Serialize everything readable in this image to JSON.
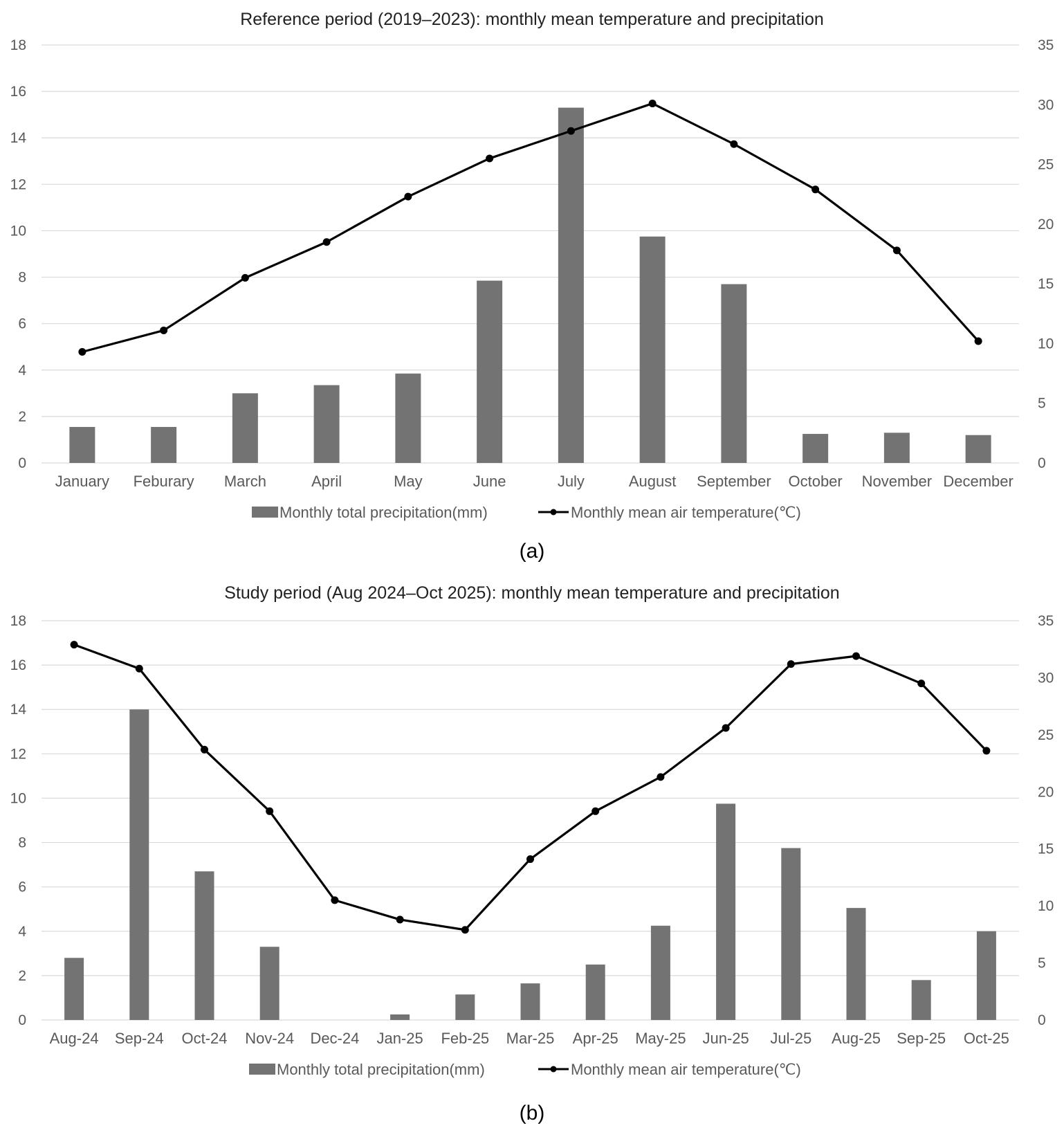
{
  "colors": {
    "bar": "#737373",
    "line": "#000000",
    "grid": "#d9d9d9",
    "tick_text": "#595959"
  },
  "legend": {
    "precip_label": "Monthly total precipitation(mm)",
    "temp_label": "Monthly mean air temperature(℃)"
  },
  "chart_data": [
    {
      "type": "bar",
      "title": "Reference period (2019–2023): monthly mean temperature and precipitation",
      "caption": "(a)",
      "categories": [
        "January",
        "Feburary",
        "March",
        "April",
        "May",
        "June",
        "July",
        "August",
        "September",
        "October",
        "November",
        "December"
      ],
      "y_left": {
        "ylim": [
          0,
          18
        ],
        "ticks": [
          "0",
          "2",
          "4",
          "6",
          "8",
          "10",
          "12",
          "14",
          "16",
          "18"
        ]
      },
      "y_right": {
        "ylim": [
          0,
          35
        ],
        "ticks": [
          "0",
          "5",
          "10",
          "15",
          "20",
          "25",
          "30",
          "35"
        ]
      },
      "series": [
        {
          "name": "Monthly total precipitation(mm)",
          "type": "bar",
          "axis": "left",
          "values": [
            1.55,
            1.55,
            3.0,
            3.35,
            3.85,
            7.85,
            15.3,
            9.75,
            7.7,
            1.25,
            1.3,
            1.2
          ]
        },
        {
          "name": "Monthly mean air temperature(℃)",
          "type": "line",
          "axis": "right",
          "values": [
            9.3,
            11.1,
            15.5,
            18.5,
            22.3,
            25.5,
            27.8,
            30.1,
            26.7,
            22.9,
            17.8,
            10.2
          ]
        }
      ],
      "grid": true,
      "legend_position": "bottom"
    },
    {
      "type": "bar",
      "title": "Study period (Aug 2024–Oct 2025): monthly mean temperature and precipitation",
      "caption": "(b)",
      "categories": [
        "Aug-24",
        "Sep-24",
        "Oct-24",
        "Nov-24",
        "Dec-24",
        "Jan-25",
        "Feb-25",
        "Mar-25",
        "Apr-25",
        "May-25",
        "Jun-25",
        "Jul-25",
        "Aug-25",
        "Sep-25",
        "Oct-25"
      ],
      "y_left": {
        "ylim": [
          0,
          18
        ],
        "ticks": [
          "0",
          "2",
          "4",
          "6",
          "8",
          "10",
          "12",
          "14",
          "16",
          "18"
        ]
      },
      "y_right": {
        "ylim": [
          0,
          35
        ],
        "ticks": [
          "0",
          "5",
          "10",
          "15",
          "20",
          "25",
          "30",
          "35"
        ]
      },
      "series": [
        {
          "name": "Monthly total precipitation(mm)",
          "type": "bar",
          "axis": "left",
          "values": [
            2.8,
            14.0,
            6.7,
            3.3,
            0.0,
            0.25,
            1.15,
            1.65,
            2.5,
            4.25,
            9.75,
            7.75,
            5.05,
            1.8,
            4.0
          ]
        },
        {
          "name": "Monthly mean air temperature(℃)",
          "type": "line",
          "axis": "right",
          "values": [
            32.9,
            30.8,
            23.7,
            18.3,
            10.5,
            8.8,
            7.9,
            14.1,
            18.3,
            21.3,
            25.6,
            31.2,
            31.9,
            29.5,
            23.6
          ]
        }
      ],
      "grid": true,
      "legend_position": "bottom"
    }
  ]
}
